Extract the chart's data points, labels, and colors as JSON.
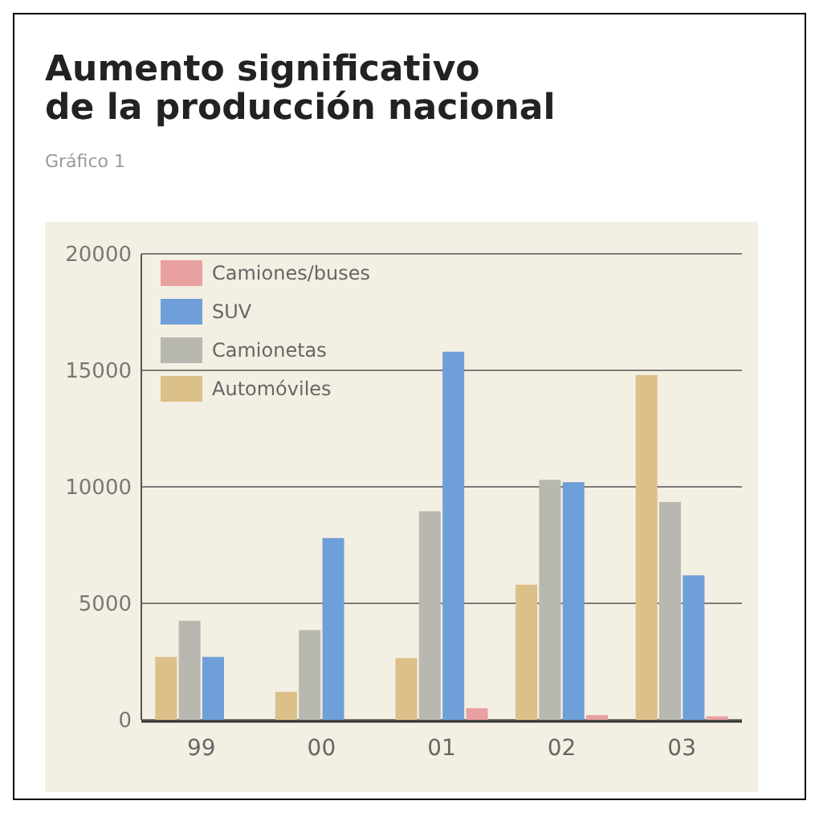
{
  "chart_data": {
    "type": "bar",
    "title": "Aumento significativo\nde la producción nacional",
    "subtitle": "Gráfico 1",
    "categories": [
      "99",
      "00",
      "01",
      "02",
      "03"
    ],
    "series": [
      {
        "name": "Automóviles",
        "color": "#dcc089",
        "values": [
          2700,
          1200,
          2650,
          5800,
          14800
        ]
      },
      {
        "name": "Camionetas",
        "color": "#b8b8b0",
        "values": [
          4250,
          3850,
          8950,
          10300,
          9350
        ]
      },
      {
        "name": "SUV",
        "color": "#6f9fd8",
        "values": [
          2700,
          7800,
          15800,
          10200,
          6200
        ]
      },
      {
        "name": "Camiones/buses",
        "color": "#e8a0a0",
        "values": [
          0,
          0,
          500,
          200,
          150
        ]
      }
    ],
    "ylim": [
      0,
      20000
    ],
    "yticks": [
      0,
      5000,
      10000,
      15000,
      20000
    ],
    "grid": "y",
    "legend": "top left"
  }
}
